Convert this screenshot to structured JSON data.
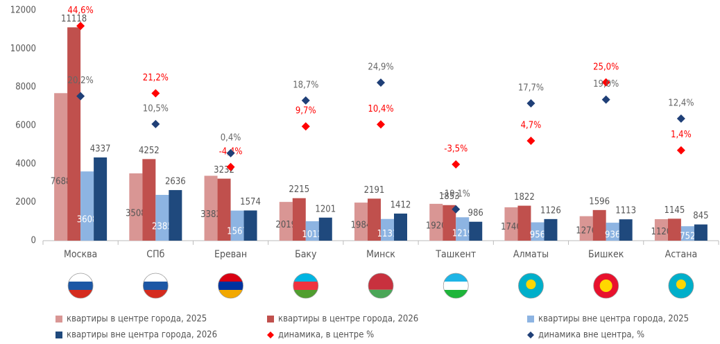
{
  "chart_data": {
    "type": "bar",
    "categories": [
      "Москва",
      "СПб",
      "Ереван",
      "Баку",
      "Минск",
      "Ташкент",
      "Алматы",
      "Бишкек",
      "Астана"
    ],
    "ylim": [
      0,
      12000
    ],
    "yticks": [
      0,
      2000,
      4000,
      6000,
      8000,
      10000,
      12000
    ],
    "y2lim": [
      -30,
      50
    ],
    "grid": false,
    "legend": "bottom",
    "series": [
      {
        "name": "квартиры в центре города, 2025",
        "color": "#d99694",
        "values": [
          7688,
          3508,
          3382,
          2019,
          1984,
          1920,
          1740,
          1276,
          1120
        ]
      },
      {
        "name": "квартиры в центре города, 2026",
        "color": "#c0504d",
        "values": [
          11118,
          4252,
          3232,
          2215,
          2191,
          1853,
          1822,
          1596,
          1145
        ]
      },
      {
        "name": "квартиры вне центра города, 2025",
        "color": "#8db4e2",
        "values": [
          3608,
          2385,
          1567,
          1012,
          1131,
          1219,
          956,
          936,
          752
        ]
      },
      {
        "name": "квартиры вне центра города, 2026",
        "color": "#1f497d",
        "values": [
          4337,
          2636,
          1574,
          1201,
          1412,
          986,
          1126,
          1113,
          845
        ]
      },
      {
        "name": "динамика, в центре %",
        "type": "scatter",
        "axis": "y2",
        "color": "#ff0000",
        "values": [
          44.6,
          21.2,
          -4.4,
          9.7,
          10.4,
          -3.5,
          4.7,
          25.0,
          1.4
        ],
        "value_labels": [
          "44,6%",
          "21,2%",
          "-4,4%",
          "9,7%",
          "10,4%",
          "-3,5%",
          "4,7%",
          "25,0%",
          "1,4%"
        ]
      },
      {
        "name": "динамика вне центра, %",
        "type": "scatter",
        "axis": "y2",
        "color": "#1f3f77",
        "values": [
          20.2,
          10.5,
          0.4,
          18.7,
          24.9,
          -19.1,
          17.7,
          19.0,
          12.4
        ],
        "value_labels": [
          "20,2%",
          "10,5%",
          "0,4%",
          "18,7%",
          "24,9%",
          "-19,1%",
          "17,7%",
          "19,0%",
          "12,4%"
        ]
      }
    ]
  }
}
